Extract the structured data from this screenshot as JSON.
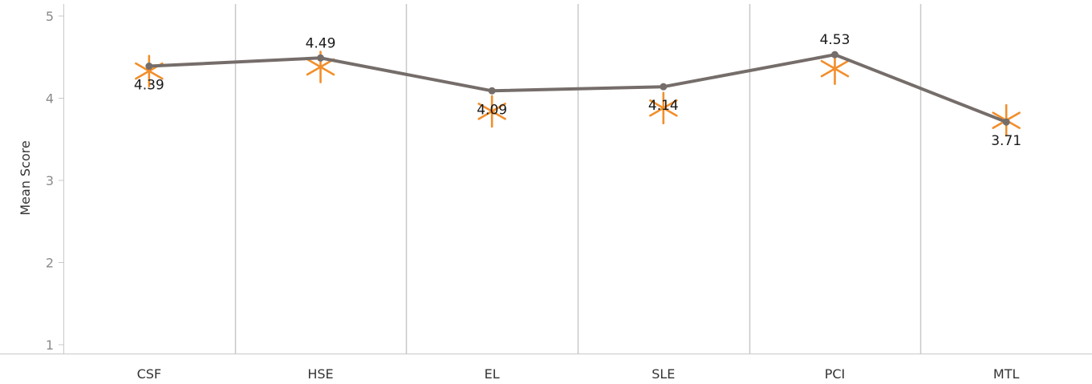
{
  "chart_data": {
    "type": "line",
    "title": "",
    "xlabel": "",
    "ylabel": "Mean Score",
    "ylim": [
      0.9,
      5.1
    ],
    "yticks": [
      "1",
      "2",
      "3",
      "4",
      "5"
    ],
    "categories": [
      "CSF",
      "HSE",
      "EL",
      "SLE",
      "PCI",
      "MTL"
    ],
    "series": [
      {
        "type": "line",
        "color": "#756d6a",
        "values": [
          4.39,
          4.49,
          4.09,
          4.14,
          4.53,
          3.71
        ],
        "data_labels": [
          "4.39",
          "4.49",
          "4.09",
          "4.14",
          "4.53",
          "3.71"
        ]
      },
      {
        "type": "asterisk-marker",
        "color": "#f28e2b",
        "values": [
          4.33,
          4.38,
          3.84,
          3.88,
          4.36,
          3.73
        ]
      }
    ],
    "grid": {
      "vertical_separators": true,
      "horizontal": false
    }
  }
}
